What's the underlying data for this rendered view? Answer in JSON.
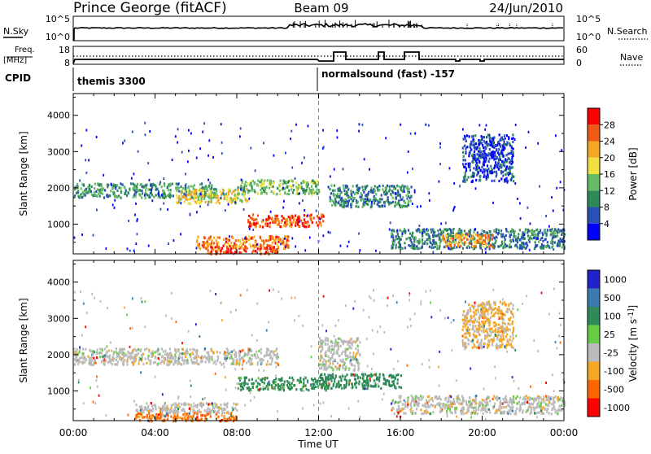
{
  "header": {
    "station": "Prince George (fitACF)",
    "beam": "Beam 09",
    "date": "24/Jun/2010"
  },
  "scan_panel": {
    "left_label": "N.Sky",
    "left_ticks": [
      "10^5",
      "10^0"
    ],
    "right_ticks": [
      "10^5",
      "10^0"
    ],
    "right_label": "N.Search"
  },
  "freq_panel": {
    "left_label_1": "Freq.",
    "left_label_2": "[MHz]",
    "left_ticks": [
      "18",
      "8"
    ],
    "right_ticks": [
      "60",
      "0"
    ],
    "right_label": "Nave"
  },
  "cpid": {
    "label": "CPID",
    "entries": [
      {
        "text": "themis 3300",
        "start_hour": 0
      },
      {
        "text": "normalsound (fast) -157",
        "start_hour": 12
      }
    ]
  },
  "time_axis": {
    "ticks": [
      "00:00",
      "04:00",
      "08:00",
      "12:00",
      "16:00",
      "20:00",
      "00:00"
    ],
    "xlabel": "Time UT"
  },
  "colors": {
    "power": [
      "#0000ff",
      "#2a4fb8",
      "#2e8b57",
      "#66bb66",
      "#f0e040",
      "#f5a623",
      "#f05a14",
      "#ff0000"
    ],
    "velocity": [
      "#2222cc",
      "#3b7ab0",
      "#2e8b57",
      "#66cc44",
      "#bbbbbb",
      "#f5a623",
      "#ff6600",
      "#ff0000"
    ]
  },
  "chart_data": [
    {
      "type": "heatmap",
      "title": "Power",
      "xlabel": "",
      "ylabel": "Slant Range [km]",
      "xlim": [
        0,
        24
      ],
      "ylim": [
        180,
        4600
      ],
      "yticks": [
        1000,
        2000,
        3000,
        4000
      ],
      "colorbar": {
        "label": "Power [dB]",
        "tick_labels": [
          "4",
          "8",
          "12",
          "16",
          "20",
          "24",
          "28"
        ],
        "range": [
          0,
          30
        ]
      },
      "features": [
        {
          "x": [
            0.0,
            7.0
          ],
          "y": [
            1750,
            2150
          ],
          "value": 11
        },
        {
          "x": [
            5.0,
            8.5
          ],
          "y": [
            1600,
            2000
          ],
          "value": 18
        },
        {
          "x": [
            6.0,
            10.5
          ],
          "y": [
            350,
            700
          ],
          "value": 24
        },
        {
          "x": [
            8.5,
            12.2
          ],
          "y": [
            950,
            1300
          ],
          "value": 26
        },
        {
          "x": [
            6.5,
            10.0
          ],
          "y": [
            200,
            400
          ],
          "value": 28
        },
        {
          "x": [
            8.0,
            12.0
          ],
          "y": [
            1850,
            2250
          ],
          "value": 14
        },
        {
          "x": [
            12.5,
            16.5
          ],
          "y": [
            1500,
            2100
          ],
          "value": 10
        },
        {
          "x": [
            15.5,
            24.0
          ],
          "y": [
            350,
            900
          ],
          "value": 9
        },
        {
          "x": [
            18.0,
            20.5
          ],
          "y": [
            400,
            750
          ],
          "value": 23
        },
        {
          "x": [
            19.0,
            21.5
          ],
          "y": [
            2200,
            3500
          ],
          "value": 5
        }
      ]
    },
    {
      "type": "heatmap",
      "title": "Velocity",
      "xlabel": "Time UT",
      "ylabel": "Slant Range [km]",
      "xlim": [
        0,
        24
      ],
      "ylim": [
        180,
        4600
      ],
      "yticks": [
        1000,
        2000,
        3000,
        4000
      ],
      "colorbar": {
        "label": "Velocity [m s^-1]",
        "tick_labels": [
          "1000",
          "500",
          "100",
          "25",
          "-25",
          "-100",
          "-500",
          "-1000"
        ]
      },
      "features": [
        {
          "x": [
            0.0,
            10.0
          ],
          "y": [
            1750,
            2200
          ],
          "value": 0
        },
        {
          "x": [
            3.0,
            8.0
          ],
          "y": [
            400,
            700
          ],
          "value": 0
        },
        {
          "x": [
            3.0,
            8.0
          ],
          "y": [
            200,
            420
          ],
          "value": -120
        },
        {
          "x": [
            8.0,
            12.5
          ],
          "y": [
            1050,
            1400
          ],
          "value": 120
        },
        {
          "x": [
            12.0,
            16.0
          ],
          "y": [
            1100,
            1500
          ],
          "value": 150
        },
        {
          "x": [
            15.5,
            24.0
          ],
          "y": [
            400,
            900
          ],
          "value": 0
        },
        {
          "x": [
            12.0,
            14.0
          ],
          "y": [
            1600,
            2500
          ],
          "value": 0
        },
        {
          "x": [
            19.0,
            21.5
          ],
          "y": [
            2200,
            3500
          ],
          "value": -30
        }
      ]
    }
  ]
}
